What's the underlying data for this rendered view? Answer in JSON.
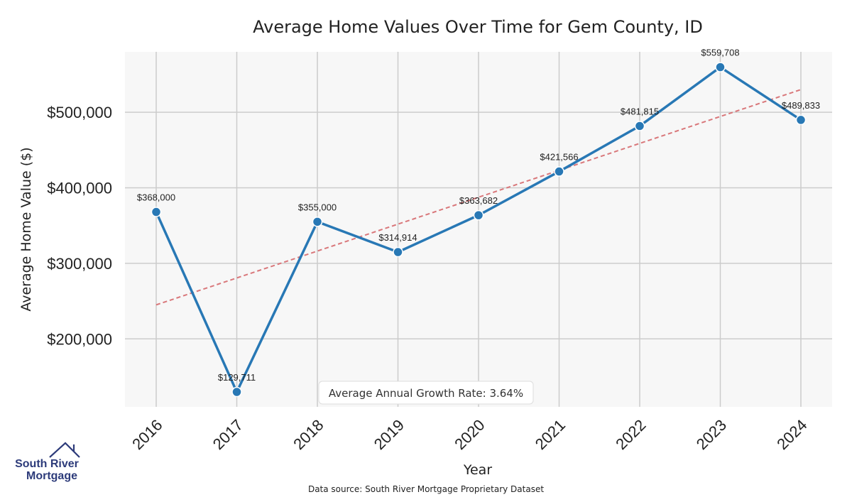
{
  "chart_data": {
    "type": "line",
    "title": "Average Home Values Over Time for Gem County, ID",
    "xlabel": "Year",
    "ylabel": "Average Home Value ($)",
    "categories": [
      "2016",
      "2017",
      "2018",
      "2019",
      "2020",
      "2021",
      "2022",
      "2023",
      "2024"
    ],
    "series": [
      {
        "values": [
          368000,
          129711,
          355000,
          314914,
          363682,
          421566,
          481815,
          559708,
          489833
        ],
        "data_labels": [
          "$368,000",
          "$129,711",
          "$355,000",
          "$314,914",
          "$363,682",
          "$421,566",
          "$481,815",
          "$559,708",
          "$489,833"
        ],
        "color": "#2878b5"
      }
    ],
    "trend_line": {
      "start": 245000,
      "end": 530000,
      "color": "#d9777a",
      "style": "dashed"
    },
    "ylim": [
      110000,
      580000
    ],
    "yticks": [
      200000,
      300000,
      400000,
      500000
    ],
    "ytick_labels": [
      "$200,000",
      "$300,000",
      "$400,000",
      "$500,000"
    ],
    "grid": true,
    "annotation": "Average Annual Growth Rate: 3.64%",
    "background": "#f7f7f7"
  },
  "footer": {
    "source": "Data source: South River Mortgage Proprietary Dataset",
    "logo_line1": "South River",
    "logo_line2": "Mortgage",
    "logo_color": "#2d3b7a"
  }
}
